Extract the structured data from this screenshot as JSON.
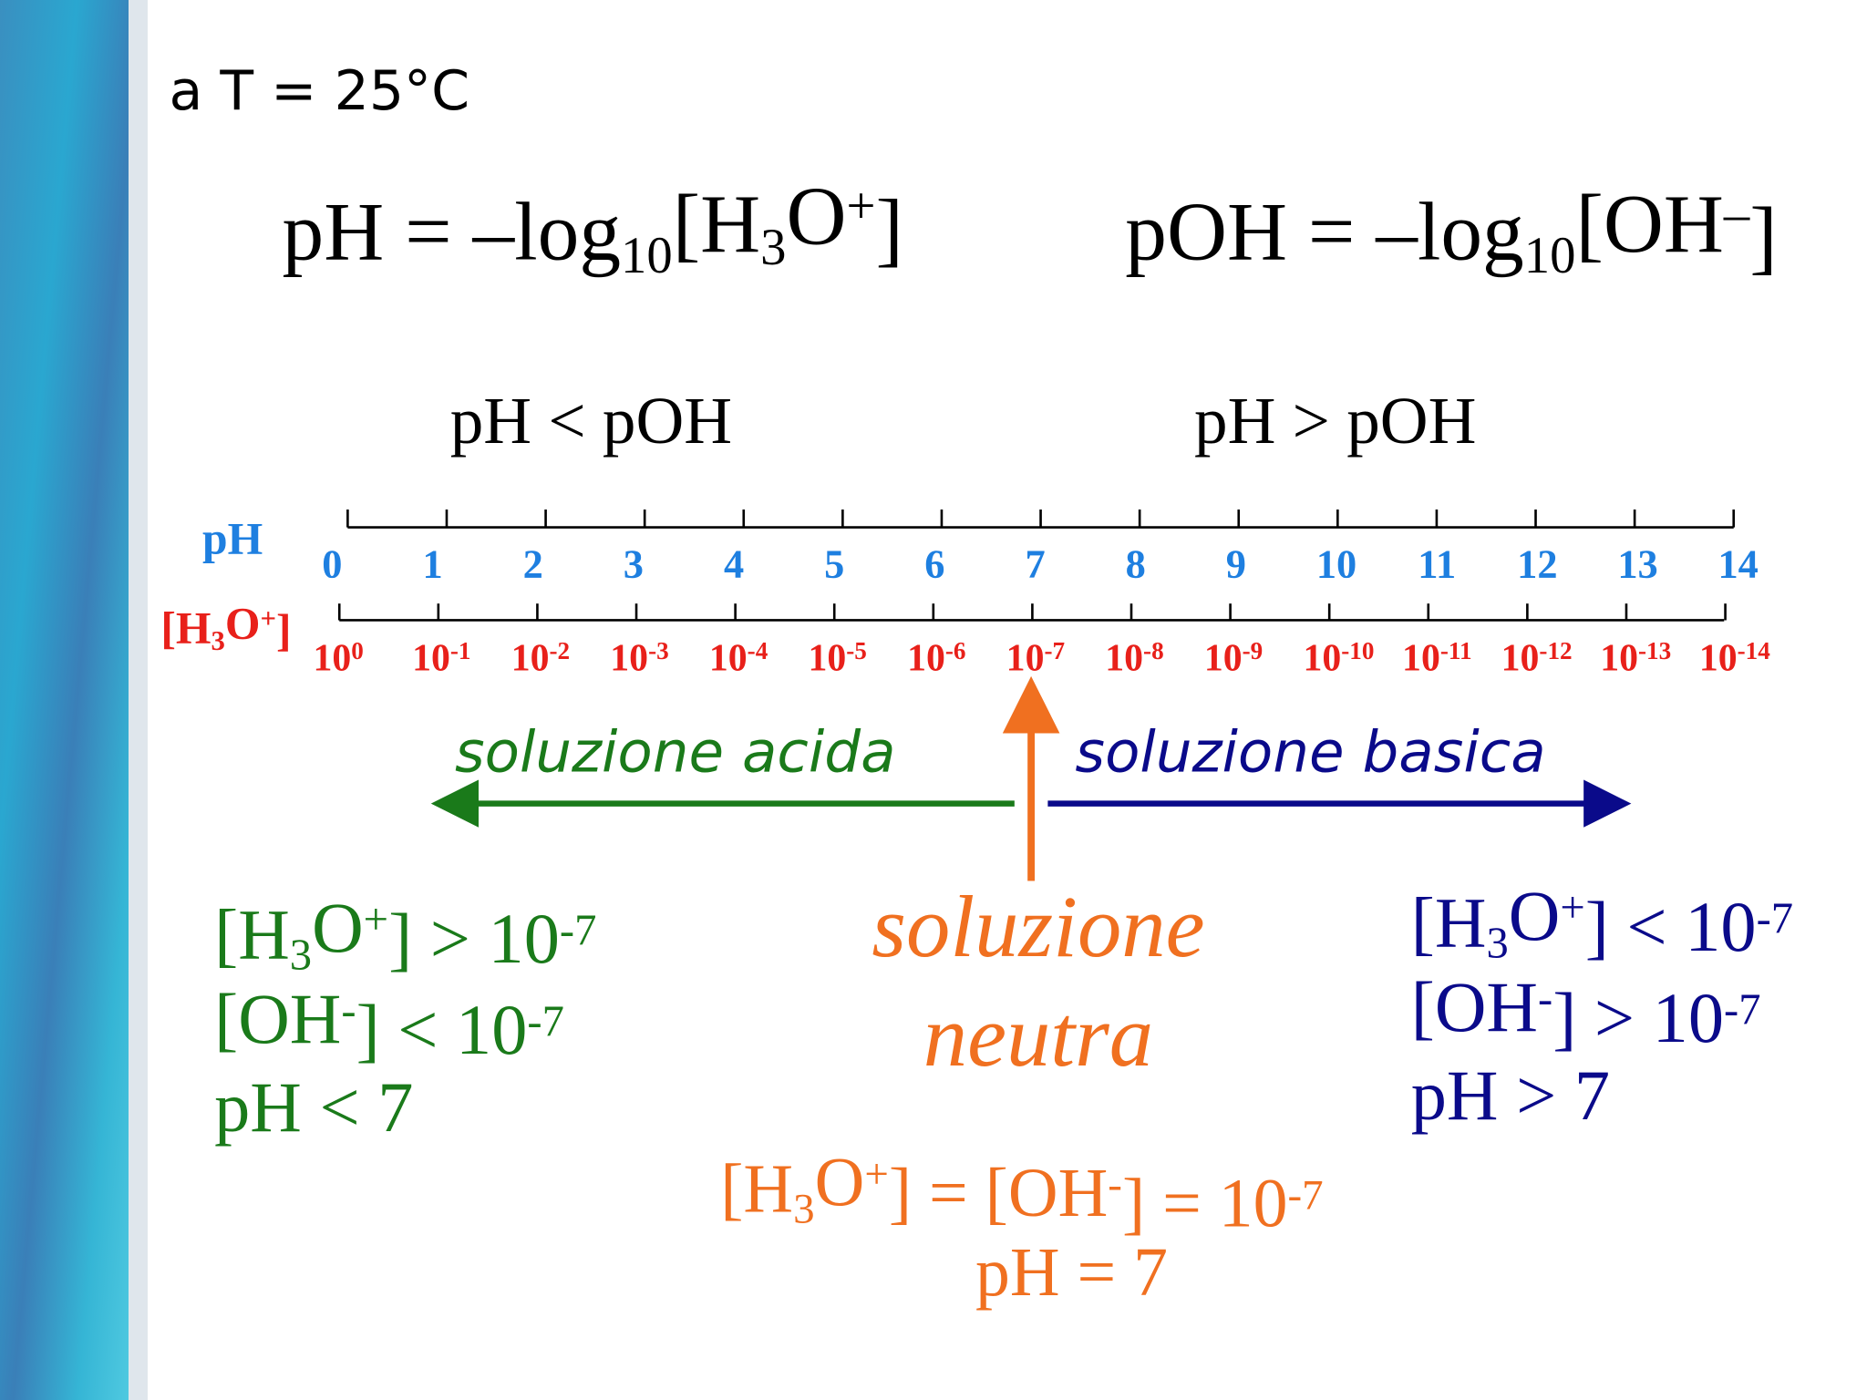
{
  "condition": "a T = 25°C",
  "formulas": {
    "ph": [
      "pH = –log",
      "10",
      "[H",
      "3",
      "O",
      "+",
      "]"
    ],
    "poh": [
      "pOH = –log",
      "10",
      "[OH",
      "–",
      "]"
    ]
  },
  "regions": {
    "left": "pH < pOH",
    "right": "pH > pOH"
  },
  "scale": {
    "ph_label": "pH",
    "ph_values": [
      0,
      1,
      2,
      3,
      4,
      5,
      6,
      7,
      8,
      9,
      10,
      11,
      12,
      13,
      14
    ],
    "conc_label": [
      "[H",
      "3",
      "O",
      "+",
      "]"
    ],
    "conc_base": "10",
    "conc_exponents": [
      0,
      -1,
      -2,
      -3,
      -4,
      -5,
      -6,
      -7,
      -8,
      -9,
      -10,
      -11,
      -12,
      -13,
      -14
    ]
  },
  "directions": {
    "acid": "soluzione acida",
    "basic": "soluzione basica"
  },
  "acid_conditions": [
    [
      "[H",
      "3",
      "O",
      "+",
      "] > 10",
      "-7"
    ],
    [
      "[OH",
      "-",
      "] < 10",
      "-7"
    ],
    [
      "pH < 7"
    ]
  ],
  "basic_conditions": [
    [
      "[H",
      "3",
      "O",
      "+",
      "] < 10",
      "-7"
    ],
    [
      "[OH",
      "-",
      "] > 10",
      "-7"
    ],
    [
      "pH > 7"
    ]
  ],
  "neutral": {
    "title": [
      "soluzione",
      "neutra"
    ],
    "conditions": [
      [
        "[H",
        "3",
        "O",
        "+",
        "] = [OH",
        "-",
        "] = 10",
        "-7"
      ],
      [
        "pH = 7"
      ]
    ]
  }
}
